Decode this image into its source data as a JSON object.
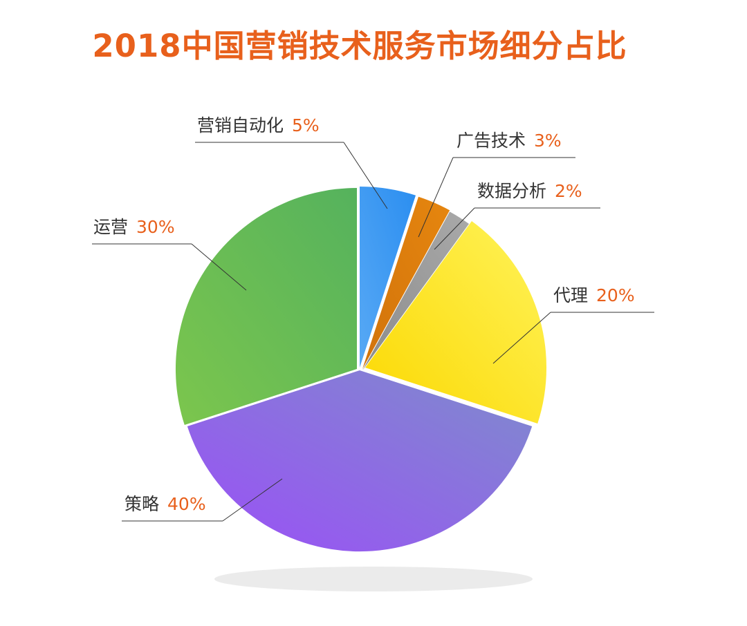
{
  "chart_data": {
    "type": "pie",
    "title": "2018中国营销技术服务市场细分占比",
    "slices": [
      {
        "name": "营销自动化",
        "value": 5,
        "label": "5%",
        "color": "#2b8ef0",
        "color2": "#58a9f5"
      },
      {
        "name": "广告技术",
        "value": 3,
        "label": "3%",
        "color": "#e6860f",
        "color2": "#d1730b"
      },
      {
        "name": "数据分析",
        "value": 2,
        "label": "2%",
        "color": "#a9a9a9",
        "color2": "#8c8c8c"
      },
      {
        "name": "代理",
        "value": 20,
        "label": "20%",
        "color": "#fff35a",
        "color2": "#fbd800"
      },
      {
        "name": "策略",
        "value": 40,
        "label": "40%",
        "color": "#7e8ccc",
        "color2": "#9b4ff7"
      },
      {
        "name": "运营",
        "value": 30,
        "label": "30%",
        "color": "#55b25d",
        "color2": "#7cc64d"
      }
    ],
    "legend": "none"
  }
}
